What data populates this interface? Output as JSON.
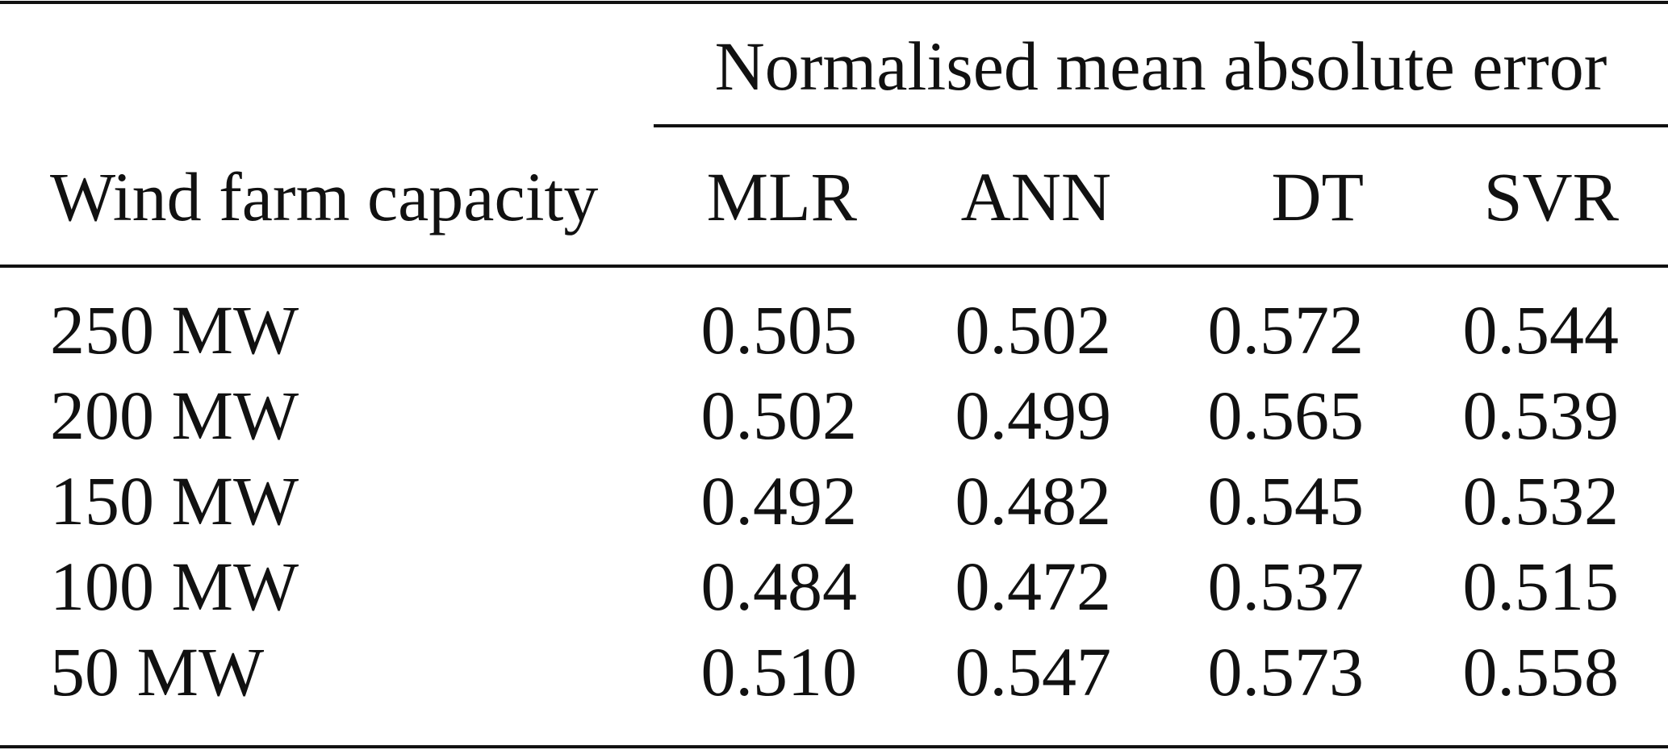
{
  "table": {
    "group_header": "Normalised mean absolute error",
    "columns": [
      "Wind farm capacity",
      "MLR",
      "ANN",
      "DT",
      "SVR"
    ],
    "rows": [
      [
        "250 MW",
        "0.505",
        "0.502",
        "0.572",
        "0.544"
      ],
      [
        "200 MW",
        "0.502",
        "0.499",
        "0.565",
        "0.539"
      ],
      [
        "150 MW",
        "0.492",
        "0.482",
        "0.545",
        "0.532"
      ],
      [
        "100 MW",
        "0.484",
        "0.472",
        "0.537",
        "0.515"
      ],
      [
        "50 MW",
        "0.510",
        "0.547",
        "0.573",
        "0.558"
      ]
    ]
  }
}
